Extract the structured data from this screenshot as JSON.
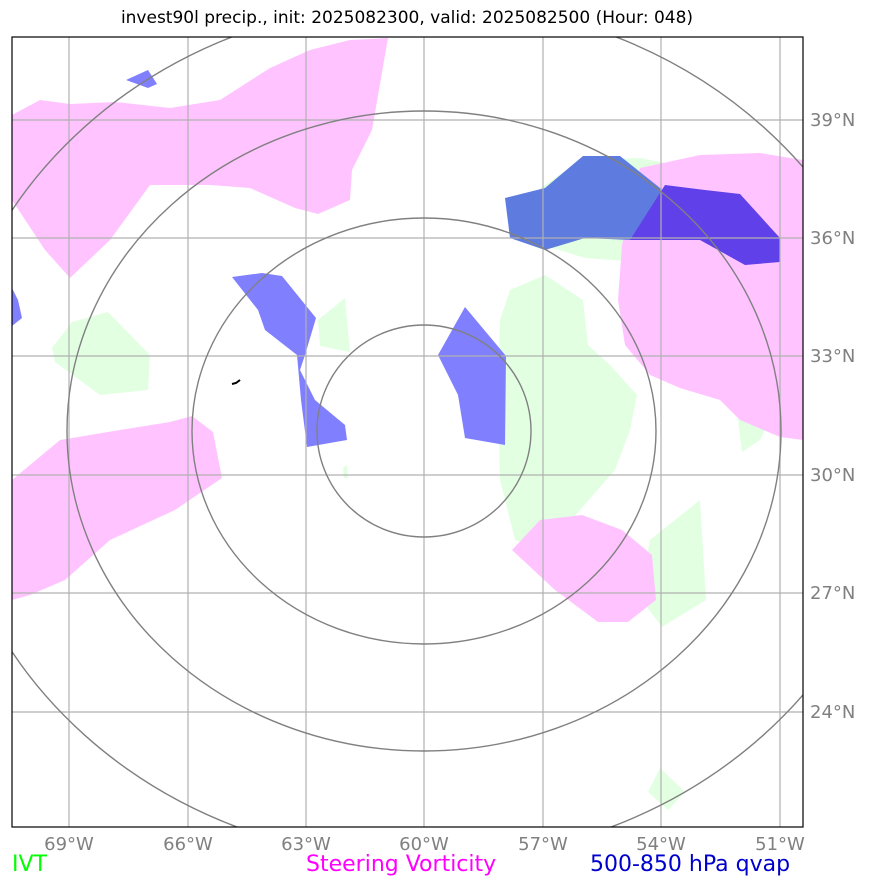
{
  "title": "invest90l precip., init: 2025082300, valid: 2025082500 (Hour: 048)",
  "axes": {
    "lon_labels": [
      "69°W",
      "66°W",
      "63°W",
      "60°W",
      "57°W",
      "54°W",
      "51°W"
    ],
    "lat_labels": [
      "39°N",
      "36°N",
      "33°N",
      "30°N",
      "27°N",
      "24°N"
    ],
    "lon_range": [
      -70.4,
      -50.4
    ],
    "lat_range": [
      21.9,
      41.9
    ]
  },
  "legend": [
    {
      "label": "IVT",
      "color": "#00ff00"
    },
    {
      "label": "Steering Vorticity",
      "color": "#ff00ff"
    },
    {
      "label": "500-850 hPa qvap",
      "color": "#0000cc"
    }
  ],
  "range_rings_km": [
    250,
    500,
    750,
    1000
  ],
  "colors": {
    "ivt_fill": "#e2ffe2",
    "vorticity_fill": "#ffc4ff",
    "qvap_fill": "#8080ff",
    "qvap_dark_fill": "#6040e8",
    "grid": "#b0b0b0",
    "ring": "#808080"
  }
}
